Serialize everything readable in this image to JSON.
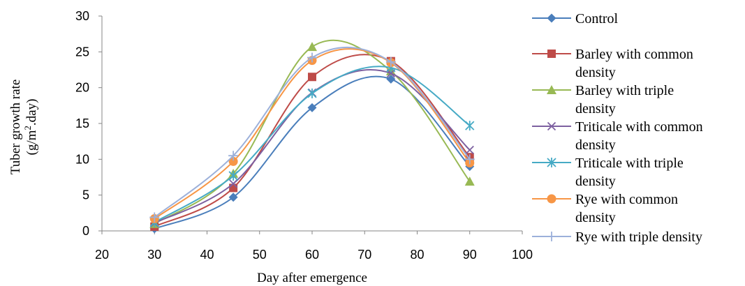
{
  "chart_data": {
    "type": "line",
    "smooth": true,
    "x": [
      30,
      45,
      60,
      75,
      90
    ],
    "xlim": [
      20,
      100
    ],
    "ylim": [
      0,
      30
    ],
    "xticks": [
      20,
      30,
      40,
      50,
      60,
      70,
      80,
      90,
      100
    ],
    "yticks": [
      0,
      5,
      10,
      15,
      20,
      25,
      30
    ],
    "xlabel": "Day after emergence",
    "ylabel_line1": "Tuber growth rate",
    "ylabel_line2": "(g/m2.day)",
    "grid": false,
    "legend_position": "right",
    "series": [
      {
        "name": "Control",
        "name_lines": [
          "Control"
        ],
        "color": "#4A7EBB",
        "marker": "diamond",
        "values": [
          0.3,
          4.7,
          17.2,
          21.2,
          9.0
        ]
      },
      {
        "name": "Barley with common density",
        "name_lines": [
          "Barley with common",
          "density"
        ],
        "color": "#BE4B48",
        "marker": "square",
        "values": [
          0.6,
          6.0,
          21.5,
          23.7,
          10.3
        ]
      },
      {
        "name": "Barley with triple density",
        "name_lines": [
          "Barley with triple",
          "density"
        ],
        "color": "#98B954",
        "marker": "triangle",
        "values": [
          1.0,
          8.0,
          25.7,
          22.3,
          6.9
        ]
      },
      {
        "name": "Triticale with common density",
        "name_lines": [
          "Triticale with common",
          "density"
        ],
        "color": "#7D60A0",
        "marker": "x",
        "values": [
          1.1,
          6.6,
          19.3,
          22.0,
          11.3
        ]
      },
      {
        "name": "Triticale with triple density",
        "name_lines": [
          "Triticale with triple",
          "density"
        ],
        "color": "#46AAC5",
        "marker": "star",
        "values": [
          1.2,
          7.7,
          19.2,
          22.8,
          14.7
        ]
      },
      {
        "name": "Rye with common density",
        "name_lines": [
          "Rye with common",
          "density"
        ],
        "color": "#F79646",
        "marker": "circle",
        "values": [
          1.7,
          9.7,
          23.8,
          23.5,
          9.5
        ]
      },
      {
        "name": "Rye with triple density",
        "name_lines": [
          "Rye with triple density"
        ],
        "color": "#9CB0DA",
        "marker": "plus",
        "values": [
          1.9,
          10.5,
          24.2,
          23.6,
          10.0
        ]
      }
    ]
  }
}
